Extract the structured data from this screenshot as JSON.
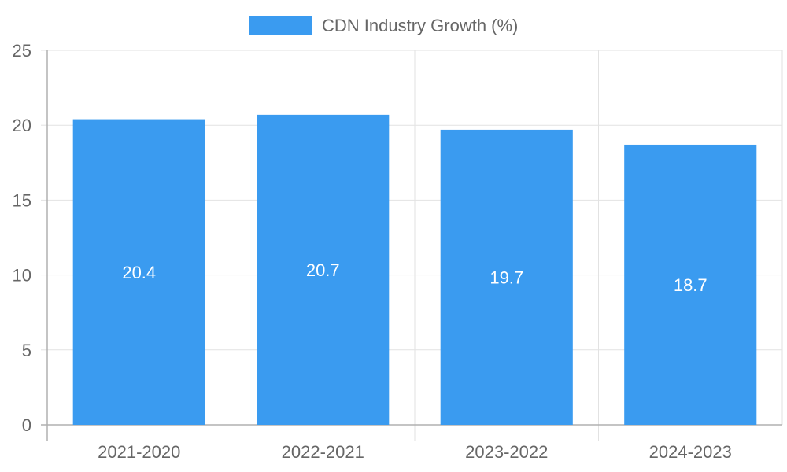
{
  "chart_data": {
    "type": "bar",
    "categories": [
      "2021-2020",
      "2022-2021",
      "2023-2022",
      "2024-2023"
    ],
    "series": [
      {
        "name": "CDN Industry Growth (%)",
        "values": [
          20.4,
          20.7,
          19.7,
          18.7
        ],
        "color": "#3a9bf0"
      }
    ],
    "data_labels": [
      "20.4",
      "20.7",
      "19.7",
      "18.7"
    ],
    "y_ticks": [
      "0",
      "5",
      "10",
      "15",
      "20",
      "25"
    ],
    "ylim": [
      0,
      25
    ],
    "y_tick_step": 5,
    "grid": true,
    "legend_position": "top-center",
    "xlabel": "",
    "ylabel": ""
  }
}
